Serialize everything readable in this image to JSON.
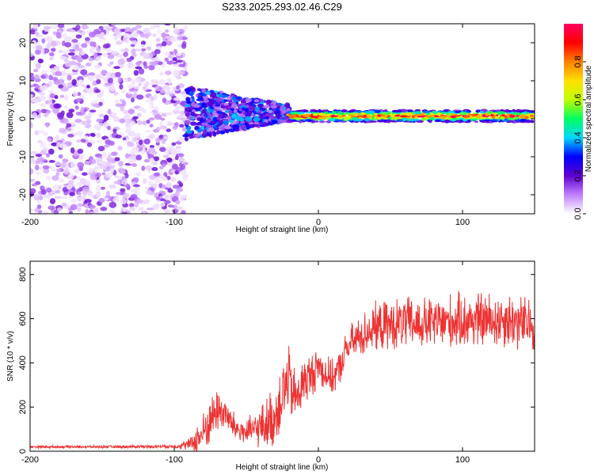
{
  "title": "S233.2025.293.02.46.C29",
  "chart_data": [
    {
      "type": "heatmap",
      "name": "spectrogram",
      "xlabel": "Height of straight line (km)",
      "ylabel": "Frequency (Hz)",
      "xlim": [
        -200,
        150
      ],
      "ylim": [
        -25,
        25
      ],
      "x_ticks": [
        -200,
        -100,
        0,
        100
      ],
      "y_ticks": [
        -20,
        -10,
        0,
        10,
        20
      ],
      "colorbar": {
        "label": "Normalized spectral amplitude",
        "range": [
          0,
          1
        ],
        "ticks": [
          0,
          0.2,
          0.4,
          0.6,
          0.8
        ],
        "tick_labels": [
          "0.0",
          "0.2",
          "0.4",
          "0.6",
          "0.8"
        ],
        "colors": [
          "#ffffff",
          "#c080ff",
          "#6000d0",
          "#0000ff",
          "#00d8ff",
          "#00ff60",
          "#c0ff00",
          "#ffe000",
          "#ff8000",
          "#ff0000",
          "#ff0060"
        ]
      },
      "regions": [
        {
          "x_range": [
            -200,
            -92
          ],
          "description": "scattered noise",
          "freq_range": [
            -25,
            25
          ],
          "amplitude_range": [
            0.02,
            0.2
          ]
        },
        {
          "x_range": [
            -92,
            -20
          ],
          "description": "broad signal",
          "freq_range": [
            -5,
            7
          ],
          "amplitude_range": [
            0.1,
            0.4
          ]
        },
        {
          "x_range": [
            -20,
            150
          ],
          "description": "narrow carrier",
          "freq_center": 0.7,
          "freq_width": 3,
          "amplitude_range": [
            0.5,
            1.0
          ]
        }
      ]
    },
    {
      "type": "line",
      "name": "snr",
      "xlabel": "Height of straight line (km)",
      "ylabel": "SNR (10 * v/v)",
      "xlim": [
        -200,
        150
      ],
      "ylim": [
        0,
        860
      ],
      "x_ticks": [
        -200,
        -100,
        0,
        100
      ],
      "y_ticks": [
        0,
        200,
        400,
        600,
        800
      ],
      "color": "#ee3333",
      "x": [
        -200,
        -150,
        -100,
        -90,
        -85,
        -80,
        -75,
        -70,
        -65,
        -60,
        -55,
        -50,
        -45,
        -40,
        -35,
        -30,
        -25,
        -22,
        -20,
        -18,
        -15,
        -10,
        -5,
        0,
        5,
        10,
        15,
        20,
        25,
        30,
        35,
        40,
        50,
        60,
        70,
        80,
        90,
        100,
        110,
        120,
        130,
        140,
        150
      ],
      "y": [
        20,
        20,
        22,
        30,
        50,
        80,
        140,
        190,
        175,
        120,
        95,
        85,
        95,
        110,
        130,
        155,
        270,
        300,
        320,
        260,
        240,
        320,
        340,
        390,
        350,
        330,
        380,
        470,
        500,
        520,
        550,
        560,
        570,
        580,
        575,
        580,
        585,
        590,
        595,
        590,
        600,
        580,
        570
      ],
      "noise_amplitude": [
        6,
        6,
        8,
        25,
        60,
        90,
        100,
        100,
        80,
        65,
        60,
        60,
        70,
        90,
        120,
        140,
        160,
        160,
        150,
        130,
        120,
        110,
        100,
        90,
        80,
        75,
        75,
        80,
        90,
        95,
        100,
        105,
        110,
        115,
        115,
        115,
        120,
        120,
        125,
        125,
        125,
        125,
        120
      ]
    }
  ]
}
